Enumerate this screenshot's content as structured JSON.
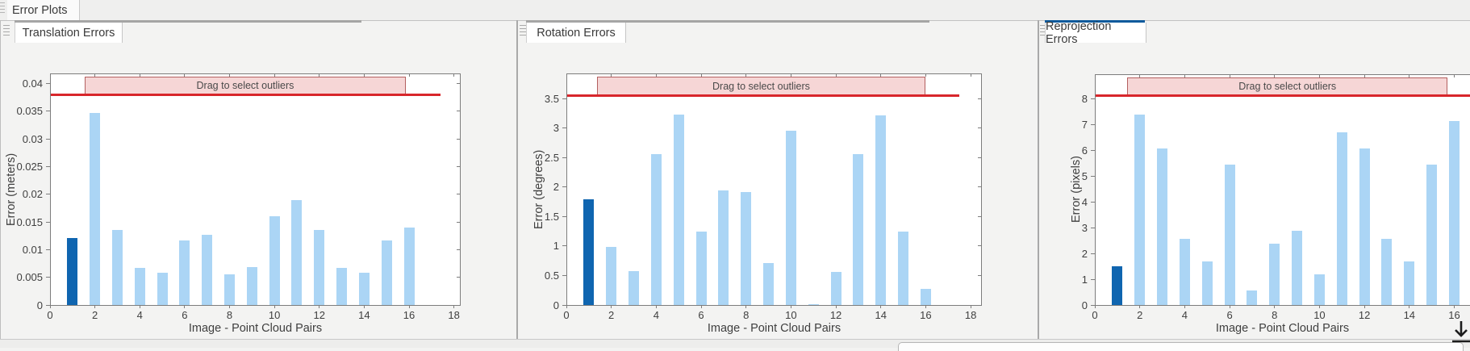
{
  "window": {
    "main_tab": "Error Plots"
  },
  "colors": {
    "bar": "#abd5f5",
    "bar_highlight": "#0f65b0",
    "threshold_line": "#d8262b",
    "band_fill": "#f6d6d6",
    "band_border": "#b35f5f",
    "accent_active": "#0c5a9c",
    "accent_inactive": "#a5a5a5"
  },
  "panels": [
    {
      "tab": "Translation Errors",
      "active": false,
      "chart_data": {
        "type": "bar",
        "title": "",
        "xlabel": "Image - Point Cloud Pairs",
        "ylabel": "Error (meters)",
        "categories": [
          1,
          2,
          3,
          4,
          5,
          6,
          7,
          8,
          9,
          10,
          11,
          12,
          13,
          14,
          15,
          16
        ],
        "values": [
          0.0121,
          0.0346,
          0.0135,
          0.0067,
          0.0058,
          0.0117,
          0.0127,
          0.0056,
          0.0068,
          0.016,
          0.0189,
          0.0135,
          0.0067,
          0.0058,
          0.0117,
          0.014
        ],
        "highlighted_index": 0,
        "xlim": [
          0,
          18.3
        ],
        "ylim": [
          0,
          0.0418
        ],
        "xticks": [
          0,
          2,
          4,
          6,
          8,
          10,
          12,
          14,
          16,
          18
        ],
        "yticks": [
          0,
          0.005,
          0.01,
          0.015,
          0.02,
          0.025,
          0.03,
          0.035,
          0.04
        ],
        "grid": false,
        "threshold_value": 0.038,
        "threshold_xend": 17.4,
        "band": {
          "label": "Drag to select outliers",
          "x0": 1.55,
          "x1": 15.85
        }
      }
    },
    {
      "tab": "Rotation Errors",
      "active": false,
      "chart_data": {
        "type": "bar",
        "title": "",
        "xlabel": "Image - Point Cloud Pairs",
        "ylabel": "Error (degrees)",
        "categories": [
          1,
          2,
          3,
          4,
          5,
          6,
          7,
          8,
          9,
          10,
          11,
          12,
          13,
          14,
          15,
          16
        ],
        "values": [
          1.8,
          0.98,
          0.57,
          2.56,
          3.23,
          1.25,
          1.95,
          1.92,
          0.71,
          2.96,
          0.02,
          0.56,
          2.56,
          3.22,
          1.25,
          0.27
        ],
        "highlighted_index": 0,
        "xlim": [
          0,
          18.5
        ],
        "ylim": [
          0,
          3.93
        ],
        "xticks": [
          0,
          2,
          4,
          6,
          8,
          10,
          12,
          14,
          16,
          18
        ],
        "yticks": [
          0,
          0.5,
          1,
          1.5,
          2,
          2.5,
          3,
          3.5
        ],
        "grid": false,
        "threshold_value": 3.56,
        "threshold_xend": 17.5,
        "band": {
          "label": "Drag to select outliers",
          "x0": 1.35,
          "x1": 16.0
        }
      }
    },
    {
      "tab": "Reprojection Errors",
      "active": true,
      "chart_data": {
        "type": "bar",
        "title": "",
        "xlabel": "Image - Point Cloud Pairs",
        "ylabel": "Error (pixels)",
        "categories": [
          1,
          2,
          3,
          4,
          5,
          6,
          7,
          8,
          9,
          10,
          11,
          12,
          13,
          14,
          15,
          16
        ],
        "values": [
          1.5,
          7.4,
          6.1,
          2.58,
          1.68,
          5.45,
          0.55,
          2.38,
          2.87,
          1.2,
          6.7,
          6.1,
          2.58,
          1.68,
          5.45,
          7.15
        ],
        "highlighted_index": 0,
        "xlim": [
          0,
          16.7
        ],
        "ylim": [
          0,
          8.97
        ],
        "xticks": [
          0,
          2,
          4,
          6,
          8,
          10,
          12,
          14,
          16
        ],
        "yticks": [
          0,
          1,
          2,
          3,
          4,
          5,
          6,
          7,
          8
        ],
        "grid": false,
        "threshold_value": 8.15,
        "threshold_xend": null,
        "band": {
          "label": "Drag to select outliers",
          "x0": 1.45,
          "x1": 15.7
        }
      }
    }
  ]
}
